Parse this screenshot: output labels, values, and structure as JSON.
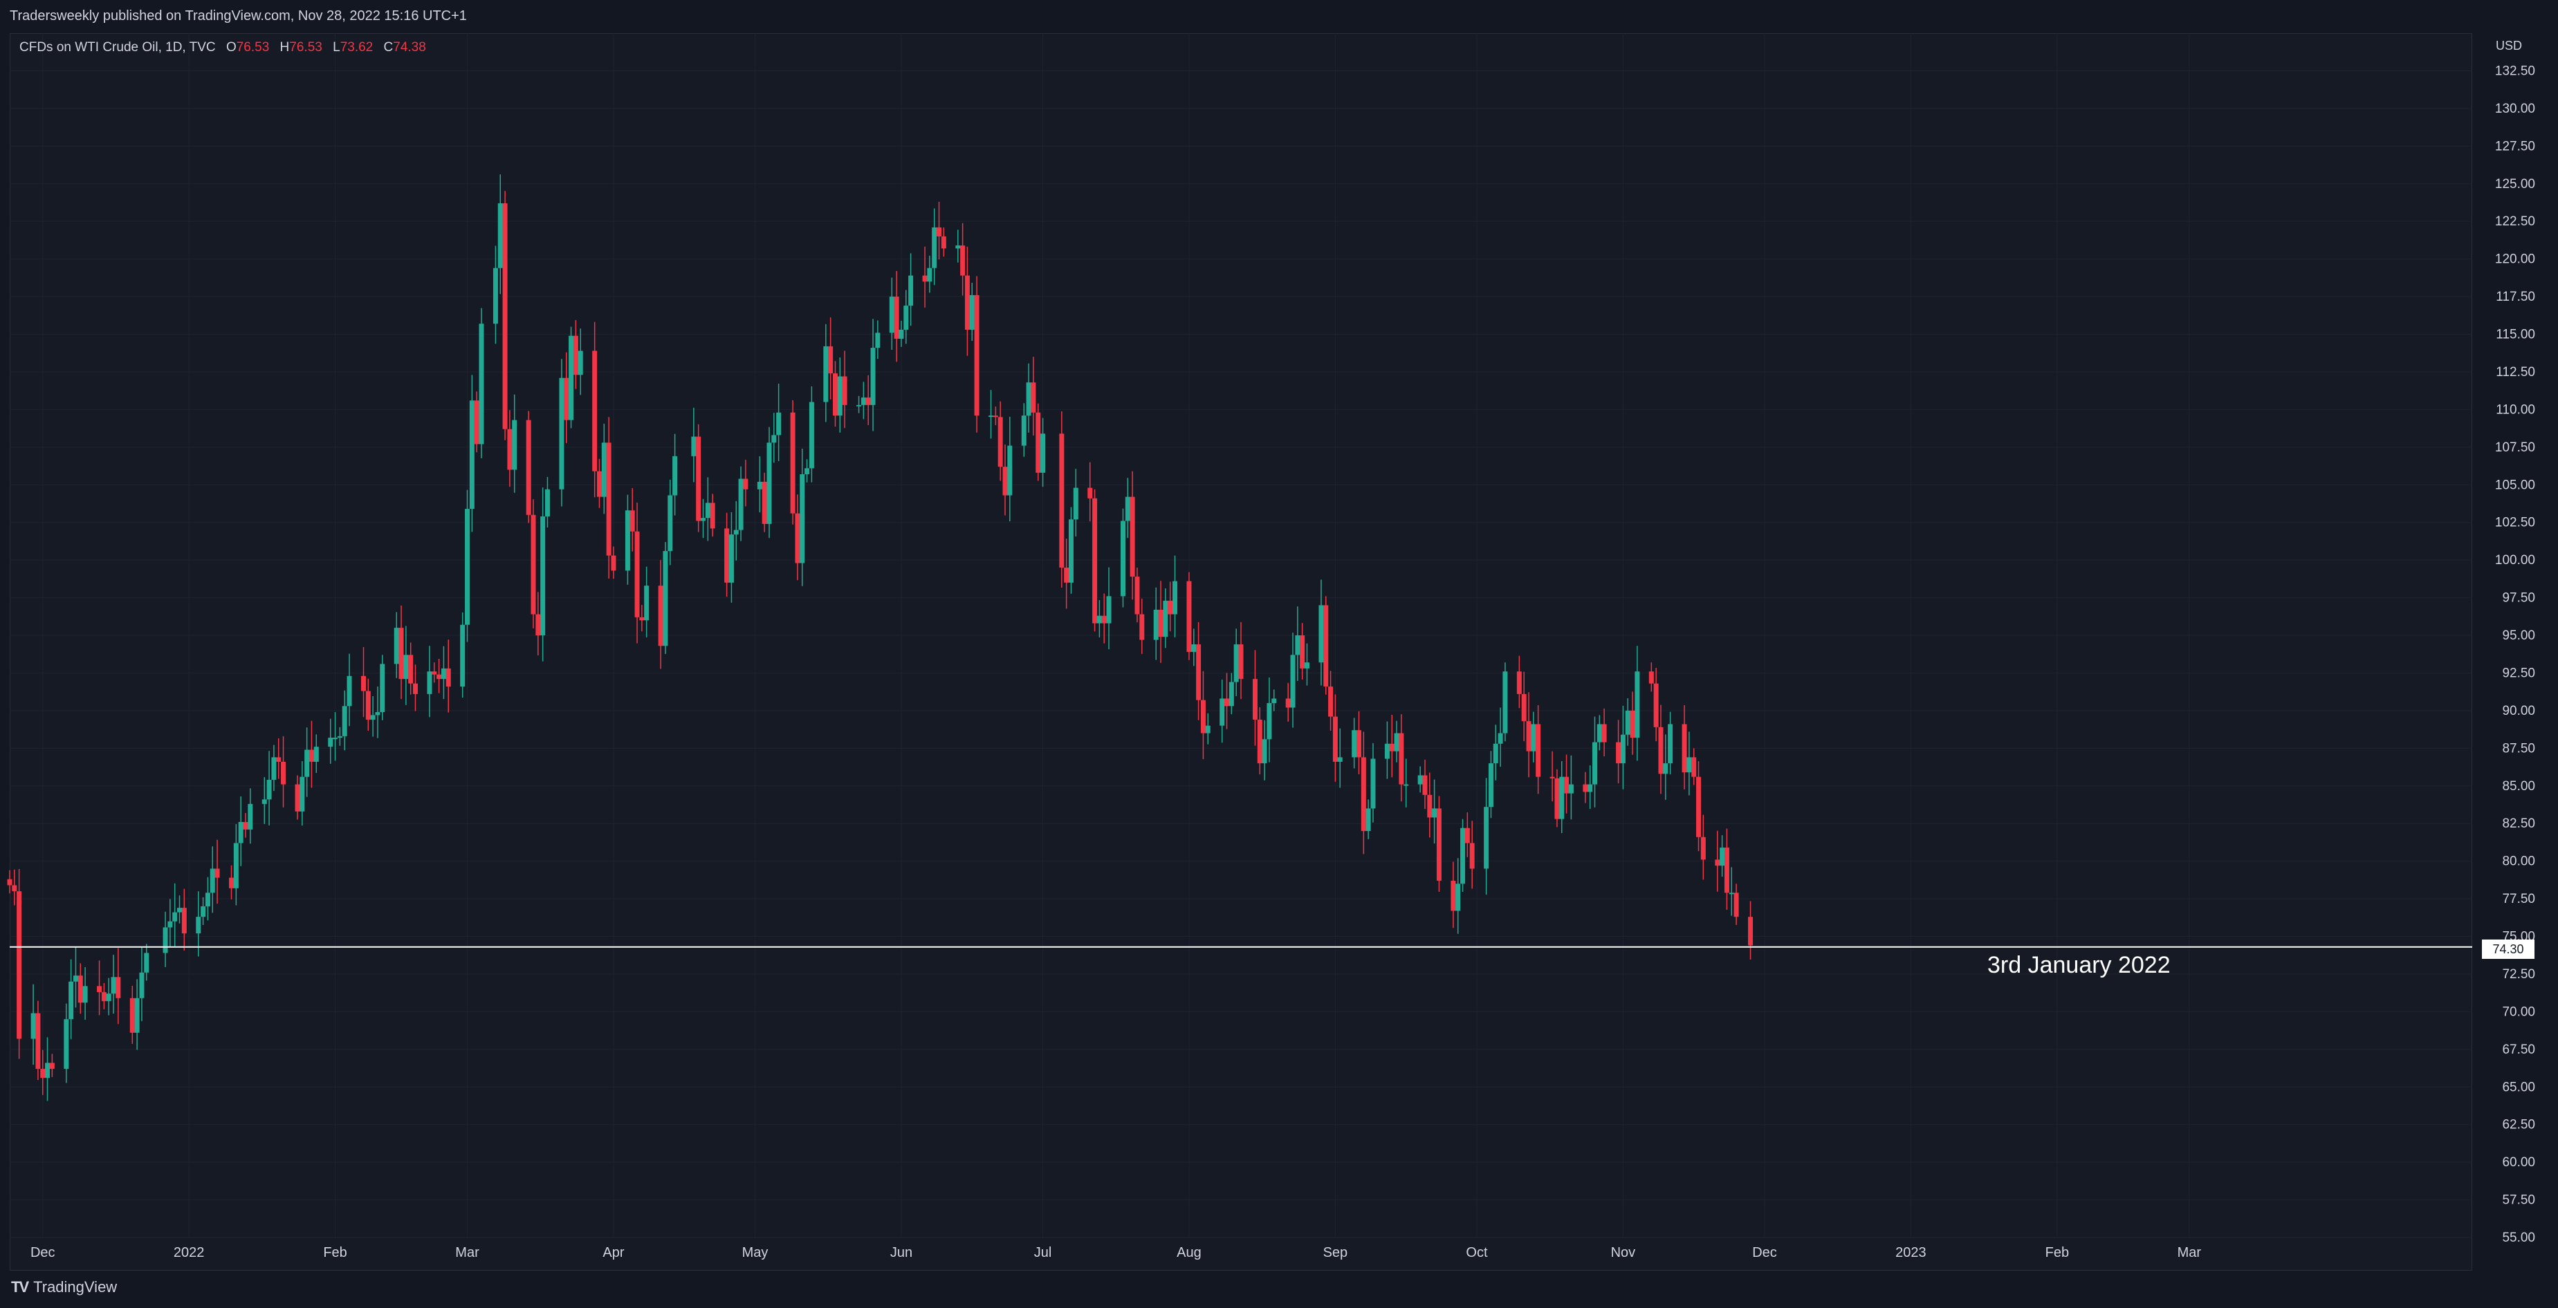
{
  "header": {
    "publish_line": "Tradersweekly published on TradingView.com, Nov 28, 2022 15:16 UTC+1"
  },
  "legend": {
    "symbol": "CFDs on WTI Crude Oil, 1D, TVC",
    "open_label": "O",
    "open": "76.53",
    "high_label": "H",
    "high": "76.53",
    "low_label": "L",
    "low": "73.62",
    "close_label": "C",
    "close": "74.38"
  },
  "axis": {
    "currency": "USD"
  },
  "price_line": {
    "label": "74.30",
    "value": 74.3
  },
  "annotation": {
    "text": "3rd January 2022"
  },
  "footer": {
    "brand": "TradingView"
  },
  "colors": {
    "up": "#22ab94",
    "down": "#f23645",
    "bg": "#161a25",
    "grid": "#1f2430",
    "line": "#ffffff"
  },
  "chart_data": {
    "type": "candlestick",
    "symbol": "WTI Crude Oil",
    "interval": "1D",
    "ylim": [
      55,
      135
    ],
    "y_ticks": [
      "55.00",
      "57.50",
      "60.00",
      "62.50",
      "65.00",
      "67.50",
      "70.00",
      "72.50",
      "75.00",
      "77.50",
      "80.00",
      "82.50",
      "85.00",
      "87.50",
      "90.00",
      "92.50",
      "95.00",
      "97.50",
      "100.00",
      "102.50",
      "105.00",
      "107.50",
      "110.00",
      "112.50",
      "115.00",
      "117.50",
      "120.00",
      "122.50",
      "125.00",
      "127.50",
      "130.00",
      "132.50"
    ],
    "x_ticks": [
      {
        "label": "Dec",
        "date": "2021-12-01"
      },
      {
        "label": "2022",
        "date": "2022-01-01"
      },
      {
        "label": "Feb",
        "date": "2022-02-01"
      },
      {
        "label": "Mar",
        "date": "2022-03-01"
      },
      {
        "label": "Apr",
        "date": "2022-04-01"
      },
      {
        "label": "May",
        "date": "2022-05-01"
      },
      {
        "label": "Jun",
        "date": "2022-06-01"
      },
      {
        "label": "Jul",
        "date": "2022-07-01"
      },
      {
        "label": "Aug",
        "date": "2022-08-01"
      },
      {
        "label": "Sep",
        "date": "2022-09-01"
      },
      {
        "label": "Oct",
        "date": "2022-10-01"
      },
      {
        "label": "Nov",
        "date": "2022-11-01"
      },
      {
        "label": "Dec",
        "date": "2022-12-01"
      },
      {
        "label": "2023",
        "date": "2023-01-01"
      },
      {
        "label": "Feb",
        "date": "2023-02-01"
      },
      {
        "label": "Mar",
        "date": "2023-03-01"
      }
    ],
    "x_range": [
      "2021-11-24",
      "2023-04-30"
    ],
    "close_approx": [
      [
        "2021-11-24",
        78.4
      ],
      [
        "2021-11-25",
        78.0
      ],
      [
        "2021-11-26",
        68.2
      ],
      [
        "2021-11-29",
        69.9
      ],
      [
        "2021-11-30",
        66.2
      ],
      [
        "2021-12-01",
        65.6
      ],
      [
        "2021-12-02",
        66.6
      ],
      [
        "2021-12-03",
        66.2
      ],
      [
        "2021-12-06",
        69.5
      ],
      [
        "2021-12-07",
        72.0
      ],
      [
        "2021-12-08",
        72.4
      ],
      [
        "2021-12-09",
        70.6
      ],
      [
        "2021-12-10",
        71.7
      ],
      [
        "2021-12-13",
        71.3
      ],
      [
        "2021-12-14",
        70.7
      ],
      [
        "2021-12-15",
        71.2
      ],
      [
        "2021-12-16",
        72.3
      ],
      [
        "2021-12-17",
        70.9
      ],
      [
        "2021-12-20",
        68.6
      ],
      [
        "2021-12-21",
        70.9
      ],
      [
        "2021-12-22",
        72.6
      ],
      [
        "2021-12-23",
        73.9
      ],
      [
        "2021-12-27",
        75.6
      ],
      [
        "2021-12-28",
        76.0
      ],
      [
        "2021-12-29",
        76.6
      ],
      [
        "2021-12-30",
        76.9
      ],
      [
        "2021-12-31",
        75.2
      ],
      [
        "2022-01-03",
        76.3
      ],
      [
        "2022-01-04",
        77.0
      ],
      [
        "2022-01-05",
        77.9
      ],
      [
        "2022-01-06",
        79.5
      ],
      [
        "2022-01-07",
        78.9
      ],
      [
        "2022-01-10",
        78.2
      ],
      [
        "2022-01-11",
        81.2
      ],
      [
        "2022-01-12",
        82.6
      ],
      [
        "2022-01-13",
        82.1
      ],
      [
        "2022-01-14",
        83.8
      ],
      [
        "2022-01-17",
        84.1
      ],
      [
        "2022-01-18",
        85.4
      ],
      [
        "2022-01-19",
        86.9
      ],
      [
        "2022-01-20",
        86.6
      ],
      [
        "2022-01-21",
        85.1
      ],
      [
        "2022-01-24",
        83.3
      ],
      [
        "2022-01-25",
        85.6
      ],
      [
        "2022-01-26",
        87.4
      ],
      [
        "2022-01-27",
        86.6
      ],
      [
        "2022-01-28",
        87.6
      ],
      [
        "2022-01-31",
        88.2
      ],
      [
        "2022-02-01",
        88.2
      ],
      [
        "2022-02-02",
        88.3
      ],
      [
        "2022-02-03",
        90.3
      ],
      [
        "2022-02-04",
        92.3
      ],
      [
        "2022-02-07",
        91.3
      ],
      [
        "2022-02-08",
        89.4
      ],
      [
        "2022-02-09",
        89.7
      ],
      [
        "2022-02-10",
        89.9
      ],
      [
        "2022-02-11",
        93.1
      ],
      [
        "2022-02-14",
        95.5
      ],
      [
        "2022-02-15",
        92.1
      ],
      [
        "2022-02-16",
        93.7
      ],
      [
        "2022-02-17",
        91.8
      ],
      [
        "2022-02-18",
        91.1
      ],
      [
        "2022-02-21",
        92.6
      ],
      [
        "2022-02-22",
        92.4
      ],
      [
        "2022-02-23",
        92.1
      ],
      [
        "2022-02-24",
        92.8
      ],
      [
        "2022-02-25",
        91.6
      ],
      [
        "2022-02-28",
        95.7
      ],
      [
        "2022-03-01",
        103.4
      ],
      [
        "2022-03-02",
        110.6
      ],
      [
        "2022-03-03",
        107.7
      ],
      [
        "2022-03-04",
        115.7
      ],
      [
        "2022-03-07",
        119.4
      ],
      [
        "2022-03-08",
        123.7
      ],
      [
        "2022-03-09",
        108.7
      ],
      [
        "2022-03-10",
        106.0
      ],
      [
        "2022-03-11",
        109.3
      ],
      [
        "2022-03-14",
        103.0
      ],
      [
        "2022-03-15",
        96.4
      ],
      [
        "2022-03-16",
        95.0
      ],
      [
        "2022-03-17",
        102.9
      ],
      [
        "2022-03-18",
        104.7
      ],
      [
        "2022-03-21",
        112.1
      ],
      [
        "2022-03-22",
        109.3
      ],
      [
        "2022-03-23",
        114.9
      ],
      [
        "2022-03-24",
        112.3
      ],
      [
        "2022-03-25",
        113.9
      ],
      [
        "2022-03-28",
        105.9
      ],
      [
        "2022-03-29",
        104.2
      ],
      [
        "2022-03-30",
        107.8
      ],
      [
        "2022-03-31",
        100.3
      ],
      [
        "2022-04-01",
        99.3
      ],
      [
        "2022-04-04",
        103.3
      ],
      [
        "2022-04-05",
        101.9
      ],
      [
        "2022-04-06",
        96.2
      ],
      [
        "2022-04-07",
        96.0
      ],
      [
        "2022-04-08",
        98.3
      ],
      [
        "2022-04-11",
        94.3
      ],
      [
        "2022-04-12",
        100.6
      ],
      [
        "2022-04-13",
        104.3
      ],
      [
        "2022-04-14",
        106.9
      ],
      [
        "2022-04-18",
        108.2
      ],
      [
        "2022-04-19",
        102.6
      ],
      [
        "2022-04-20",
        102.8
      ],
      [
        "2022-04-21",
        103.8
      ],
      [
        "2022-04-22",
        102.1
      ],
      [
        "2022-04-25",
        98.5
      ],
      [
        "2022-04-26",
        101.7
      ],
      [
        "2022-04-27",
        102.0
      ],
      [
        "2022-04-28",
        105.4
      ],
      [
        "2022-04-29",
        104.7
      ],
      [
        "2022-05-02",
        105.2
      ],
      [
        "2022-05-03",
        102.4
      ],
      [
        "2022-05-04",
        107.8
      ],
      [
        "2022-05-05",
        108.3
      ],
      [
        "2022-05-06",
        109.8
      ],
      [
        "2022-05-09",
        103.1
      ],
      [
        "2022-05-10",
        99.8
      ],
      [
        "2022-05-11",
        105.7
      ],
      [
        "2022-05-12",
        106.1
      ],
      [
        "2022-05-13",
        110.5
      ],
      [
        "2022-05-16",
        114.2
      ],
      [
        "2022-05-17",
        112.4
      ],
      [
        "2022-05-18",
        109.6
      ],
      [
        "2022-05-19",
        112.2
      ],
      [
        "2022-05-20",
        110.3
      ],
      [
        "2022-05-23",
        110.3
      ],
      [
        "2022-05-24",
        110.8
      ],
      [
        "2022-05-25",
        110.3
      ],
      [
        "2022-05-26",
        114.1
      ],
      [
        "2022-05-27",
        115.1
      ],
      [
        "2022-05-30",
        117.5
      ],
      [
        "2022-05-31",
        114.7
      ],
      [
        "2022-06-01",
        115.3
      ],
      [
        "2022-06-02",
        116.9
      ],
      [
        "2022-06-03",
        118.9
      ],
      [
        "2022-06-06",
        118.5
      ],
      [
        "2022-06-07",
        119.4
      ],
      [
        "2022-06-08",
        122.1
      ],
      [
        "2022-06-09",
        121.5
      ],
      [
        "2022-06-10",
        120.7
      ],
      [
        "2022-06-13",
        120.9
      ],
      [
        "2022-06-14",
        118.9
      ],
      [
        "2022-06-15",
        115.3
      ],
      [
        "2022-06-16",
        117.6
      ],
      [
        "2022-06-17",
        109.6
      ],
      [
        "2022-06-20",
        109.6
      ],
      [
        "2022-06-21",
        109.5
      ],
      [
        "2022-06-22",
        106.2
      ],
      [
        "2022-06-23",
        104.3
      ],
      [
        "2022-06-24",
        107.6
      ],
      [
        "2022-06-27",
        109.6
      ],
      [
        "2022-06-28",
        111.8
      ],
      [
        "2022-06-29",
        109.8
      ],
      [
        "2022-06-30",
        105.8
      ],
      [
        "2022-07-01",
        108.4
      ],
      [
        "2022-07-05",
        99.5
      ],
      [
        "2022-07-06",
        98.5
      ],
      [
        "2022-07-07",
        102.7
      ],
      [
        "2022-07-08",
        104.8
      ],
      [
        "2022-07-11",
        104.1
      ],
      [
        "2022-07-12",
        95.8
      ],
      [
        "2022-07-13",
        96.3
      ],
      [
        "2022-07-14",
        95.8
      ],
      [
        "2022-07-15",
        97.6
      ],
      [
        "2022-07-18",
        102.6
      ],
      [
        "2022-07-19",
        104.2
      ],
      [
        "2022-07-20",
        98.9
      ],
      [
        "2022-07-21",
        96.4
      ],
      [
        "2022-07-22",
        94.7
      ],
      [
        "2022-07-25",
        96.7
      ],
      [
        "2022-07-26",
        94.9
      ],
      [
        "2022-07-27",
        97.3
      ],
      [
        "2022-07-28",
        96.4
      ],
      [
        "2022-07-29",
        98.6
      ],
      [
        "2022-08-01",
        93.9
      ],
      [
        "2022-08-02",
        94.4
      ],
      [
        "2022-08-03",
        90.7
      ],
      [
        "2022-08-04",
        88.5
      ],
      [
        "2022-08-05",
        89.0
      ],
      [
        "2022-08-08",
        90.8
      ],
      [
        "2022-08-09",
        90.3
      ],
      [
        "2022-08-10",
        91.9
      ],
      [
        "2022-08-11",
        94.4
      ],
      [
        "2022-08-12",
        92.1
      ],
      [
        "2022-08-15",
        89.4
      ],
      [
        "2022-08-16",
        86.5
      ],
      [
        "2022-08-17",
        88.1
      ],
      [
        "2022-08-18",
        90.5
      ],
      [
        "2022-08-19",
        90.8
      ],
      [
        "2022-08-22",
        90.2
      ],
      [
        "2022-08-23",
        93.7
      ],
      [
        "2022-08-24",
        95.0
      ],
      [
        "2022-08-25",
        92.8
      ],
      [
        "2022-08-26",
        93.2
      ],
      [
        "2022-08-29",
        97.0
      ],
      [
        "2022-08-30",
        91.6
      ],
      [
        "2022-08-31",
        89.6
      ],
      [
        "2022-09-01",
        86.6
      ],
      [
        "2022-09-02",
        86.9
      ],
      [
        "2022-09-05",
        88.7
      ],
      [
        "2022-09-06",
        86.9
      ],
      [
        "2022-09-07",
        82.0
      ],
      [
        "2022-09-08",
        83.5
      ],
      [
        "2022-09-09",
        86.8
      ],
      [
        "2022-09-12",
        87.8
      ],
      [
        "2022-09-13",
        87.3
      ],
      [
        "2022-09-14",
        88.5
      ],
      [
        "2022-09-15",
        85.1
      ],
      [
        "2022-09-16",
        85.1
      ],
      [
        "2022-09-19",
        85.7
      ],
      [
        "2022-09-20",
        84.4
      ],
      [
        "2022-09-21",
        82.9
      ],
      [
        "2022-09-22",
        83.5
      ],
      [
        "2022-09-23",
        78.7
      ],
      [
        "2022-09-26",
        76.7
      ],
      [
        "2022-09-27",
        78.5
      ],
      [
        "2022-09-28",
        82.2
      ],
      [
        "2022-09-29",
        81.2
      ],
      [
        "2022-09-30",
        79.5
      ],
      [
        "2022-10-03",
        83.6
      ],
      [
        "2022-10-04",
        86.5
      ],
      [
        "2022-10-05",
        87.8
      ],
      [
        "2022-10-06",
        88.5
      ],
      [
        "2022-10-07",
        92.6
      ],
      [
        "2022-10-10",
        91.1
      ],
      [
        "2022-10-11",
        89.3
      ],
      [
        "2022-10-12",
        87.3
      ],
      [
        "2022-10-13",
        89.1
      ],
      [
        "2022-10-14",
        85.6
      ],
      [
        "2022-10-17",
        85.5
      ],
      [
        "2022-10-18",
        82.8
      ],
      [
        "2022-10-19",
        85.6
      ],
      [
        "2022-10-20",
        84.5
      ],
      [
        "2022-10-21",
        85.1
      ],
      [
        "2022-10-24",
        84.6
      ],
      [
        "2022-10-25",
        85.1
      ],
      [
        "2022-10-26",
        87.9
      ],
      [
        "2022-10-27",
        89.1
      ],
      [
        "2022-10-28",
        87.9
      ],
      [
        "2022-10-31",
        86.5
      ],
      [
        "2022-11-01",
        88.4
      ],
      [
        "2022-11-02",
        90.0
      ],
      [
        "2022-11-03",
        88.2
      ],
      [
        "2022-11-04",
        92.6
      ],
      [
        "2022-11-07",
        91.8
      ],
      [
        "2022-11-08",
        88.9
      ],
      [
        "2022-11-09",
        85.8
      ],
      [
        "2022-11-10",
        86.5
      ],
      [
        "2022-11-11",
        89.1
      ],
      [
        "2022-11-14",
        85.9
      ],
      [
        "2022-11-15",
        86.9
      ],
      [
        "2022-11-16",
        85.6
      ],
      [
        "2022-11-17",
        81.6
      ],
      [
        "2022-11-18",
        80.1
      ],
      [
        "2022-11-21",
        79.7
      ],
      [
        "2022-11-22",
        80.9
      ],
      [
        "2022-11-23",
        77.9
      ],
      [
        "2022-11-24",
        77.9
      ],
      [
        "2022-11-25",
        76.3
      ],
      [
        "2022-11-28",
        74.4
      ]
    ]
  }
}
